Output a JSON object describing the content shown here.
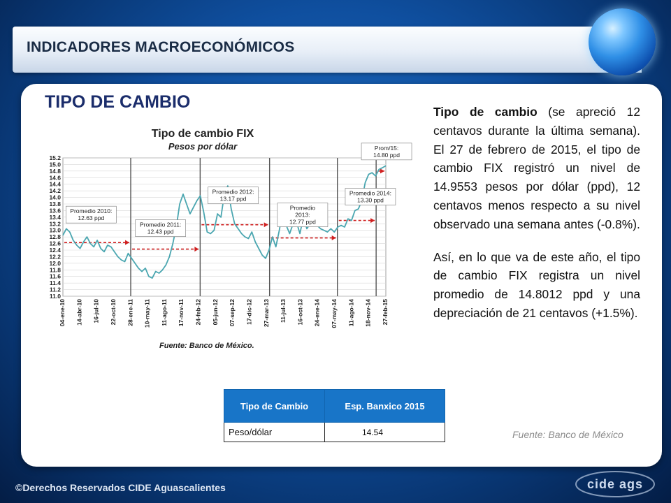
{
  "header": {
    "title": "INDICADORES MACROECONÓMICOS"
  },
  "main_title": "TIPO DE CAMBIO",
  "description": {
    "p1_bold": "Tipo de cambio",
    "p1_rest": " (se apreció 12 centavos durante la última semana). El 27 de febrero de 2015, el tipo de cambio FIX registró un nivel de 14.9553 pesos por dólar (ppd), 12 centavos menos respecto a su nivel observado una semana antes (-0.8%).",
    "p2": "Así, en lo que va de este año, el tipo de cambio FIX registra un nivel promedio de 14.8012 ppd y una depreciación de 21 centavos (+1.5%)."
  },
  "source_note": "Fuente: Banco de México",
  "expectation_table": {
    "headers": [
      "Tipo de Cambio",
      "Esp. Banxico 2015"
    ],
    "rows": [
      [
        "Peso/dólar",
        "14.54"
      ]
    ]
  },
  "footer": {
    "copyright": "©Derechos Reservados CIDE Aguascalientes",
    "logo_text": "cide ags"
  },
  "colors": {
    "line": "#4aa6b0",
    "average_marker": "#d02020",
    "divider": "#555555",
    "table_header": "#1875c8"
  },
  "chart_data": {
    "type": "line",
    "title": "Tipo de cambio FIX",
    "subtitle": "Pesos por dólar",
    "source": "Fuente: Banco de México.",
    "ylim": [
      11.0,
      15.2
    ],
    "yticks": [
      "15.2",
      "15.0",
      "14.8",
      "14.6",
      "14.4",
      "14.2",
      "14.0",
      "13.8",
      "13.6",
      "13.4",
      "13.2",
      "13.0",
      "12.8",
      "12.6",
      "12.4",
      "12.2",
      "12.0",
      "11.8",
      "11.6",
      "11.4",
      "11.2",
      "11.0"
    ],
    "xlabels": [
      "04-ene-10",
      "14-abr-10",
      "16-jul-10",
      "22-oct-10",
      "28-ene-11",
      "10-may-11",
      "11-ago-11",
      "17-nov-11",
      "24-feb-12",
      "05-jun-12",
      "07-sep-12",
      "17-dic-12",
      "27-mar-13",
      "11-jul-13",
      "16-oct-13",
      "24-ene-14",
      "07-may-14",
      "11-ago-14",
      "18-nov-14",
      "27-feb-15"
    ],
    "series": [
      {
        "values": [
          12.85,
          13.05,
          12.95,
          12.7,
          12.55,
          12.45,
          12.65,
          12.8,
          12.6,
          12.5,
          12.7,
          12.45,
          12.35,
          12.55,
          12.5,
          12.35,
          12.2,
          12.1,
          12.05,
          12.3,
          12.15,
          12.0,
          11.85,
          11.75,
          11.85,
          11.6,
          11.55,
          11.75,
          11.7,
          11.8,
          11.95,
          12.2,
          12.6,
          13.1,
          13.8,
          14.1,
          13.8,
          13.5,
          13.7,
          13.9,
          14.05,
          13.55,
          12.95,
          12.9,
          13.0,
          13.5,
          13.4,
          14.1,
          14.35,
          13.65,
          13.2,
          13.05,
          12.9,
          12.8,
          12.75,
          12.95,
          12.65,
          12.45,
          12.25,
          12.15,
          12.4,
          12.8,
          12.5,
          13.0,
          13.6,
          13.15,
          12.9,
          13.2,
          13.25,
          12.9,
          13.4,
          13.05,
          13.2,
          13.35,
          13.15,
          13.05,
          13.0,
          12.95,
          13.05,
          12.95,
          13.1,
          13.15,
          13.1,
          13.35,
          13.3,
          13.6,
          13.65,
          13.9,
          14.45,
          14.7,
          14.75,
          14.65,
          14.85,
          14.9,
          14.96
        ]
      }
    ],
    "averages": [
      {
        "label_line1": "Promedio 2010:",
        "label_line2": "12.63 ppd",
        "value": 12.63,
        "x_start": 0,
        "x_end": 0.21
      },
      {
        "label_line1": "Promedio 2011:",
        "label_line2": "12.43 ppd",
        "value": 12.43,
        "x_start": 0.21,
        "x_end": 0.425
      },
      {
        "label_line1": "Promedio 2012:",
        "label_line2": "13.17 ppd",
        "value": 13.17,
        "x_start": 0.425,
        "x_end": 0.64
      },
      {
        "label_line1": "Promedio",
        "label_line1b": "2013:",
        "label_line2": "12.77 ppd",
        "value": 12.77,
        "x_start": 0.64,
        "x_end": 0.85
      },
      {
        "label_line1": "Promedio 2014:",
        "label_line2": "13.30 ppd",
        "value": 13.3,
        "x_start": 0.85,
        "x_end": 0.97
      },
      {
        "label_line1": "Prom/15:",
        "label_line2": "14.80 ppd",
        "value": 14.8,
        "x_start": 0.97,
        "x_end": 1.0
      }
    ],
    "year_dividers": [
      0.21,
      0.425,
      0.64,
      0.85,
      0.97
    ],
    "grid": true,
    "legend": "none"
  }
}
